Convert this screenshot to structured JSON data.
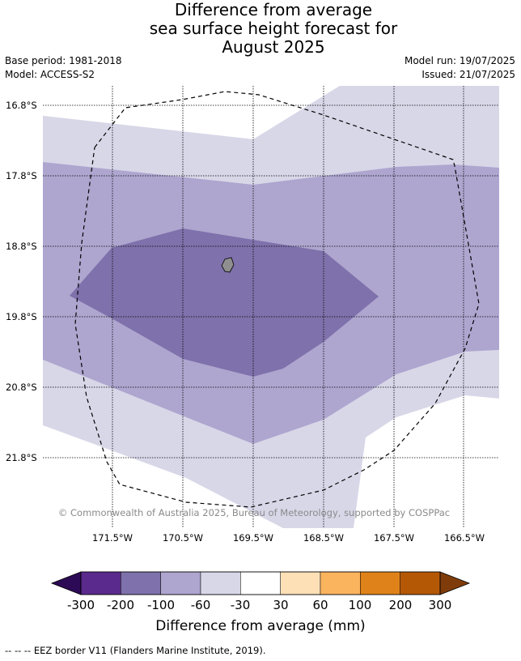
{
  "title": {
    "line1": "Difference from average",
    "line2": "sea surface height forecast for",
    "line3": "August 2025"
  },
  "meta": {
    "base_period": "Base period: 1981-2018",
    "model": "Model: ACCESS-S2",
    "model_run": "Model run: 19/07/2025",
    "issued": "Issued: 21/07/2025"
  },
  "map": {
    "lat_labels": [
      "16.8°S",
      "17.8°S",
      "18.8°S",
      "19.8°S",
      "20.8°S",
      "21.8°S"
    ],
    "lon_labels": [
      "171.5°W",
      "170.5°W",
      "169.5°W",
      "168.5°W",
      "167.5°W",
      "166.5°W"
    ],
    "copyright": "© Commonwealth of Australia 2025, Bureau of Meteorology, supported by COSPPac"
  },
  "colorbar": {
    "labels": [
      "-300",
      "-200",
      "-100",
      "-60",
      "-30",
      "30",
      "60",
      "100",
      "200",
      "300"
    ],
    "colors": [
      "#2d0a55",
      "#5a2a8c",
      "#7f71ab",
      "#aea6cf",
      "#d8d7e8",
      "#ffffff",
      "#fde0b6",
      "#fbb45e",
      "#e0821a",
      "#b45806",
      "#7f3c0a"
    ],
    "title": "Difference from average (mm)"
  },
  "footer": "-- -- -- EEZ border V11 (Flanders Marine Institute, 2019)."
}
